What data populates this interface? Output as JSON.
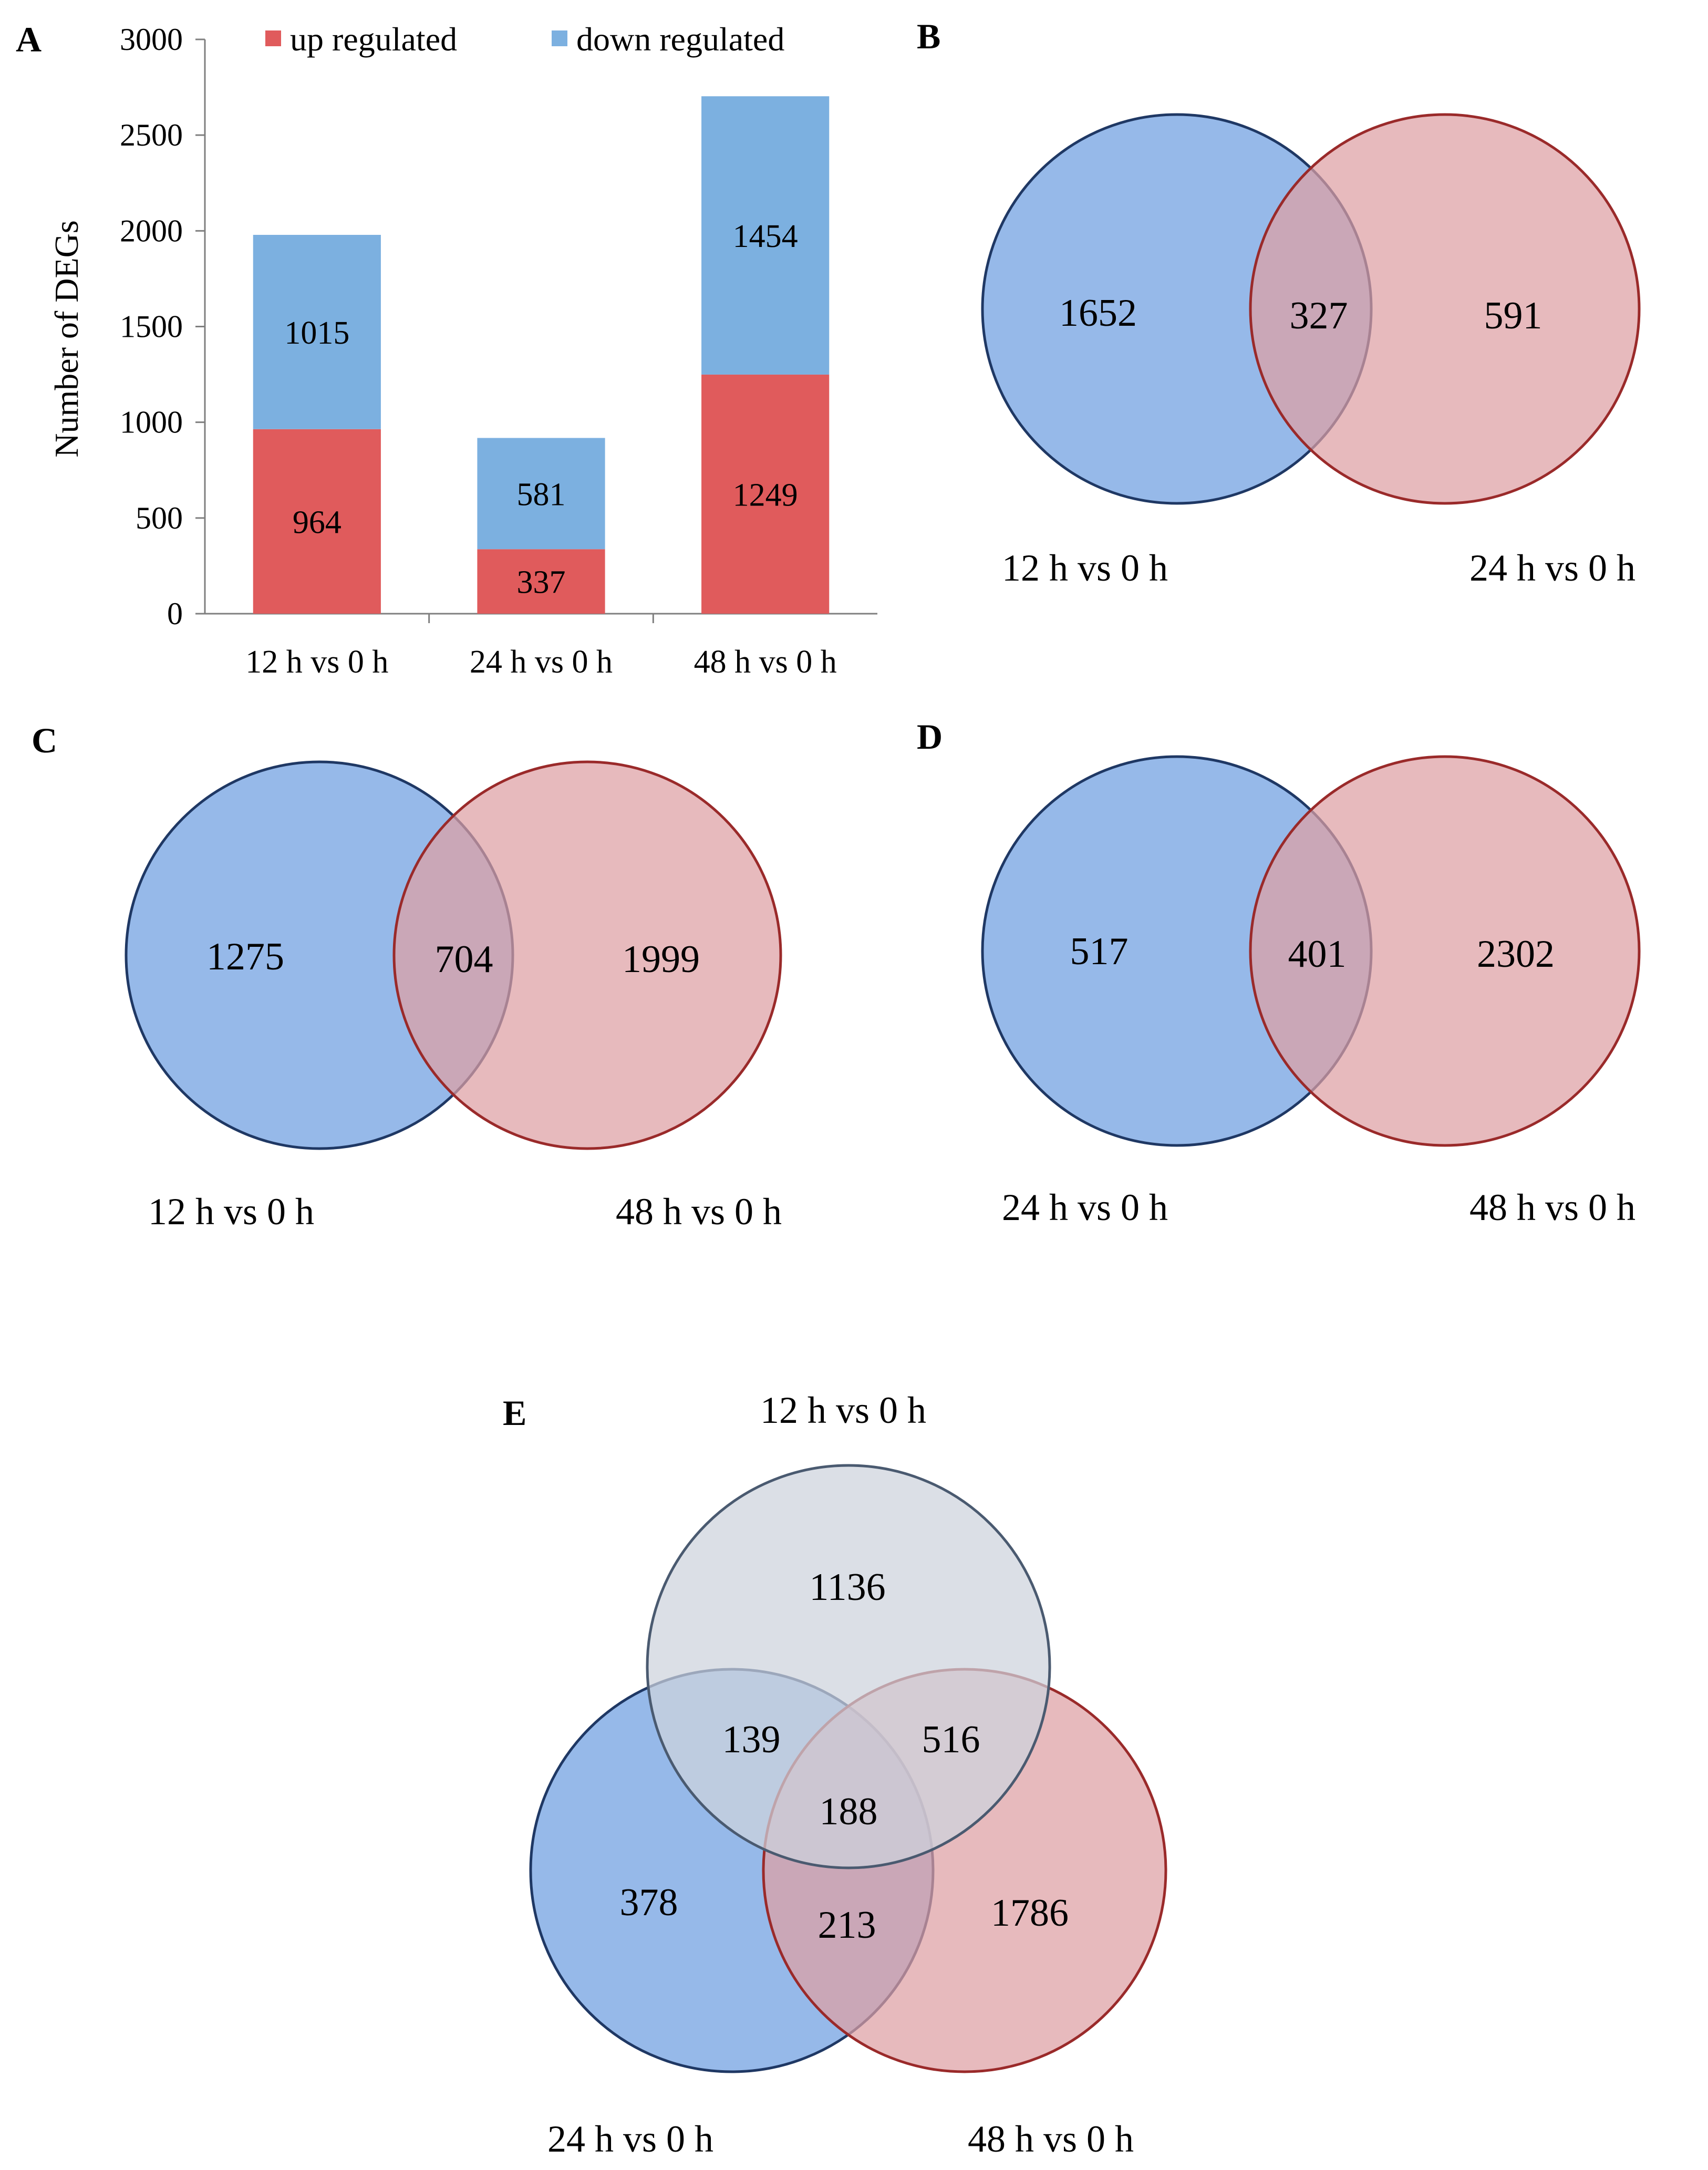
{
  "panels": {
    "A": "A",
    "B": "B",
    "C": "C",
    "D": "D",
    "E": "E"
  },
  "colors": {
    "up": "#e05b5c",
    "down": "#7cb0e0",
    "venn_blue_fill": "#6d9ee0",
    "venn_blue_stroke": "#1f3864",
    "venn_red_fill": "#dea0a3",
    "venn_red_stroke": "#9a2a2a",
    "venn_grey_fill": "#cdd3dc",
    "venn_grey_stroke": "#4a5a70"
  },
  "chart_data": [
    {
      "type": "bar",
      "stacked": true,
      "panel": "A",
      "ylabel": "Number of DEGs",
      "ylim": [
        0,
        3000
      ],
      "yticks": [
        0,
        500,
        1000,
        1500,
        2000,
        2500,
        3000
      ],
      "categories": [
        "12 h vs 0 h",
        "24 h vs 0 h",
        "48 h vs 0 h"
      ],
      "series": [
        {
          "name": "up regulated",
          "values": [
            964,
            337,
            1249
          ]
        },
        {
          "name": "down regulated",
          "values": [
            1015,
            581,
            1454
          ]
        }
      ],
      "legend": "top"
    },
    {
      "type": "venn",
      "panel": "B",
      "sets": [
        "12 h vs 0 h",
        "24 h vs 0 h"
      ],
      "regions": {
        "only_1": 1652,
        "both": 327,
        "only_2": 591
      }
    },
    {
      "type": "venn",
      "panel": "C",
      "sets": [
        "12 h vs 0 h",
        "48 h vs 0 h"
      ],
      "regions": {
        "only_1": 1275,
        "both": 704,
        "only_2": 1999
      }
    },
    {
      "type": "venn",
      "panel": "D",
      "sets": [
        "24 h vs 0 h",
        "48 h vs 0 h"
      ],
      "regions": {
        "only_1": 517,
        "both": 401,
        "only_2": 2302
      }
    },
    {
      "type": "venn",
      "panel": "E",
      "sets": [
        "12 h vs 0 h",
        "24 h vs 0 h",
        "48 h vs 0 h"
      ],
      "regions": {
        "only_12": 1136,
        "only_24": 378,
        "only_48": 1786,
        "12_24": 139,
        "12_48": 516,
        "24_48": 213,
        "all": 188
      }
    }
  ]
}
